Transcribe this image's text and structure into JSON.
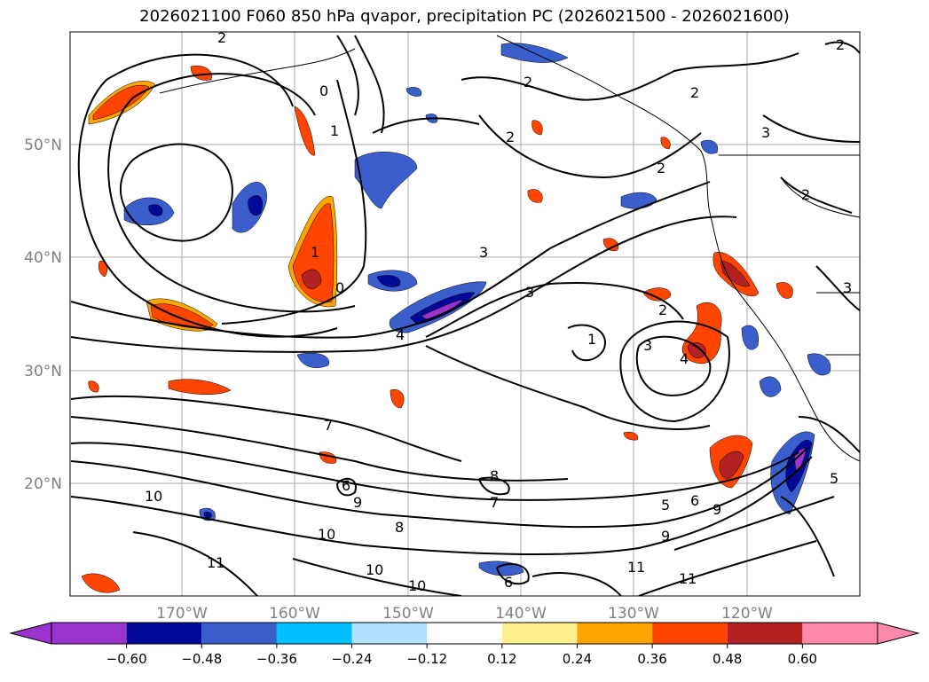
{
  "title": "2026021100 F060 850 hPa qvapor, precipitation PC (2026021500 - 2026021600)",
  "lat_labels": [
    "50°N",
    "40°N",
    "30°N",
    "20°N"
  ],
  "lon_labels": [
    "170°W",
    "160°W",
    "150°W",
    "140°W",
    "130°W",
    "120°W"
  ],
  "colorbar": {
    "ticks": [
      "−0.60",
      "−0.48",
      "−0.36",
      "−0.24",
      "−0.12",
      "0.12",
      "0.24",
      "0.36",
      "0.48",
      "0.60"
    ],
    "colors": [
      "#9a32cd",
      "#000a96",
      "#3a5fcd",
      "#00bfff",
      "#b0e2ff",
      "#ffffff",
      "#fff08c",
      "#ffa500",
      "#ff4500",
      "#b22222",
      "#ff88aa",
      "#ff88aa"
    ],
    "low_extend_color": "#9a32cd",
    "high_extend_color": "#ff88aa"
  },
  "contour_labels": [
    "2",
    "2",
    "2",
    "2",
    "2",
    "1",
    "1",
    "0",
    "0",
    "3",
    "3",
    "4",
    "1",
    "2",
    "2",
    "3",
    "4",
    "3",
    "7",
    "8",
    "7",
    "9",
    "6",
    "10",
    "10",
    "9",
    "11",
    "11",
    "8",
    "10",
    "6",
    "5",
    "6",
    "9",
    "10",
    "11",
    "2",
    "3",
    "5"
  ]
}
